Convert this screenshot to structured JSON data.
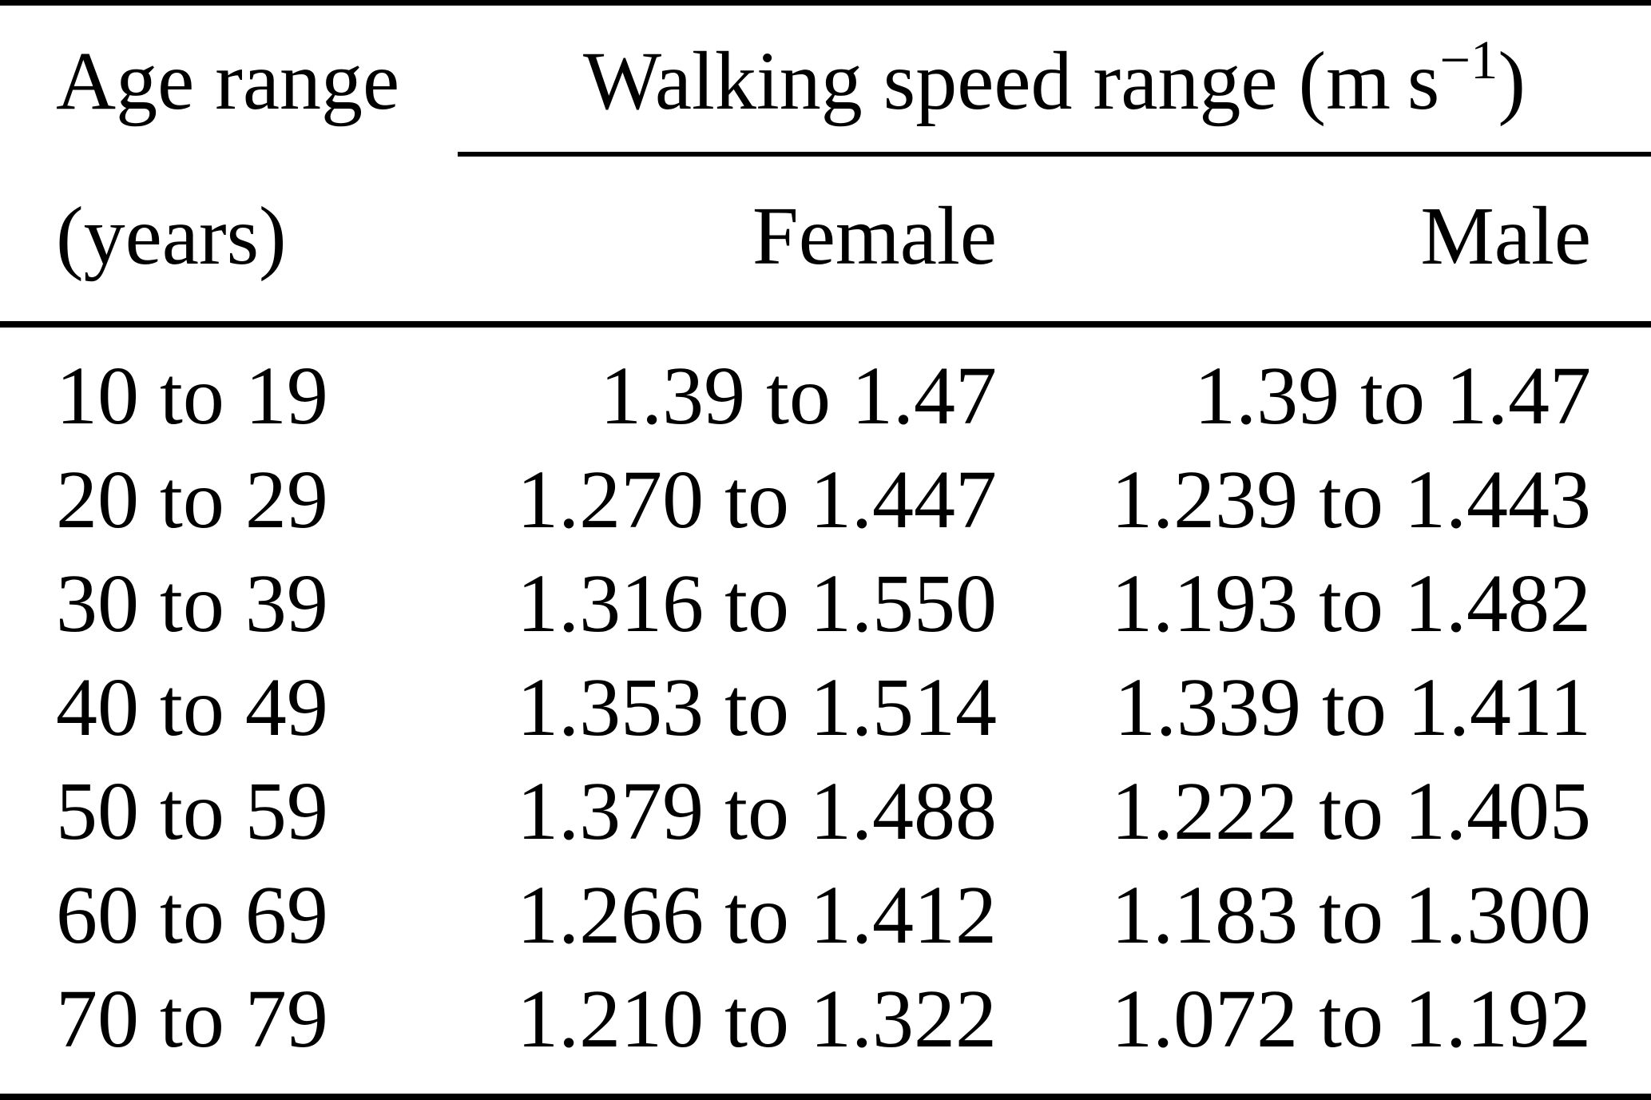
{
  "table": {
    "header": {
      "age_line1": "Age range",
      "age_line2": "(years)",
      "span_prefix": "Walking speed range (m s",
      "span_sup": "−1",
      "span_suffix": ")",
      "female": "Female",
      "male": "Male"
    },
    "rows": [
      {
        "age": "10 to 19",
        "female": "1.39 to 1.47",
        "male": "1.39 to 1.47"
      },
      {
        "age": "20 to 29",
        "female": "1.270 to 1.447",
        "male": "1.239 to 1.443"
      },
      {
        "age": "30 to 39",
        "female": "1.316 to 1.550",
        "male": "1.193 to 1.482"
      },
      {
        "age": "40 to 49",
        "female": "1.353 to 1.514",
        "male": "1.339 to 1.411"
      },
      {
        "age": "50 to 59",
        "female": "1.379 to 1.488",
        "male": "1.222 to 1.405"
      },
      {
        "age": "60 to 69",
        "female": "1.266 to 1.412",
        "male": "1.183 to 1.300"
      },
      {
        "age": "70 to 79",
        "female": "1.210 to 1.322",
        "male": "1.072 to 1.192"
      }
    ],
    "colors": {
      "text": "#000000",
      "background": "#ffffff",
      "rule": "#000000"
    }
  },
  "chart_data": {
    "type": "table",
    "columns": [
      "Age range (years)",
      "Walking speed range (m s−1) Female",
      "Walking speed range (m s−1) Male"
    ],
    "rows": [
      [
        "10 to 19",
        "1.39 to 1.47",
        "1.39 to 1.47"
      ],
      [
        "20 to 29",
        "1.270 to 1.447",
        "1.239 to 1.443"
      ],
      [
        "30 to 39",
        "1.316 to 1.550",
        "1.193 to 1.482"
      ],
      [
        "40 to 49",
        "1.353 to 1.514",
        "1.339 to 1.411"
      ],
      [
        "50 to 59",
        "1.379 to 1.488",
        "1.222 to 1.405"
      ],
      [
        "60 to 69",
        "1.266 to 1.412",
        "1.183 to 1.300"
      ],
      [
        "70 to 79",
        "1.210 to 1.322",
        "1.072 to 1.192"
      ]
    ]
  }
}
